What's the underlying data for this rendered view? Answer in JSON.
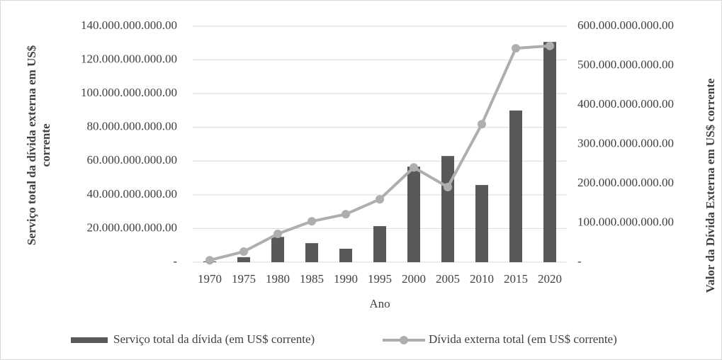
{
  "chart_data": {
    "type": "bar_line",
    "xlabel": "Ano",
    "ylabel": [
      "Serviço total da dívida externa em US$",
      "corrente"
    ],
    "y2label": "Valor da Dívida Externa em US$ corrente",
    "categories": [
      "1970",
      "1975",
      "1980",
      "1985",
      "1990",
      "1995",
      "2000",
      "2005",
      "2010",
      "2015",
      "2020"
    ],
    "series": [
      {
        "name": "Serviço total da dívida (em US$ corrente)",
        "type": "bar",
        "color": "#595959",
        "values": [
          500000000,
          3000000000,
          15000000000,
          11300000000,
          8000000000,
          21400000000,
          56700000000,
          63000000000,
          45800000000,
          90000000000,
          130700000000
        ]
      },
      {
        "name": "Dívida externa total (em US$ corrente)",
        "type": "line",
        "axis": "y2",
        "color": "#aeaeae",
        "values": [
          5000000000,
          27000000000,
          72000000000,
          104000000000,
          122000000000,
          160000000000,
          241000000000,
          191000000000,
          351000000000,
          544000000000,
          550000000000
        ]
      }
    ],
    "ylim": [
      0,
      140000000000
    ],
    "yticks": [
      {
        "value": 0,
        "label": "-"
      },
      {
        "value": 20000000000,
        "label": "20.000.000.000.00"
      },
      {
        "value": 40000000000,
        "label": "40.000.000.000.00"
      },
      {
        "value": 60000000000,
        "label": "60.000.000.000.00"
      },
      {
        "value": 80000000000,
        "label": "80.000.000.000.00"
      },
      {
        "value": 100000000000,
        "label": "100.000.000.000.00"
      },
      {
        "value": 120000000000,
        "label": "120.000.000.000.00"
      },
      {
        "value": 140000000000,
        "label": "140.000.000.000.00"
      }
    ],
    "y2lim": [
      0,
      600000000000
    ],
    "y2ticks": [
      {
        "value": 0,
        "label": "-"
      },
      {
        "value": 100000000000,
        "label": "100.000.000.000.00"
      },
      {
        "value": 200000000000,
        "label": "200.000.000.000.00"
      },
      {
        "value": 300000000000,
        "label": "300.000.000.000.00"
      },
      {
        "value": 400000000000,
        "label": "400.000.000.000.00"
      },
      {
        "value": 500000000000,
        "label": "500.000.000.000.00"
      },
      {
        "value": 600000000000,
        "label": "600.000.000.000.00"
      }
    ],
    "grid": true
  }
}
